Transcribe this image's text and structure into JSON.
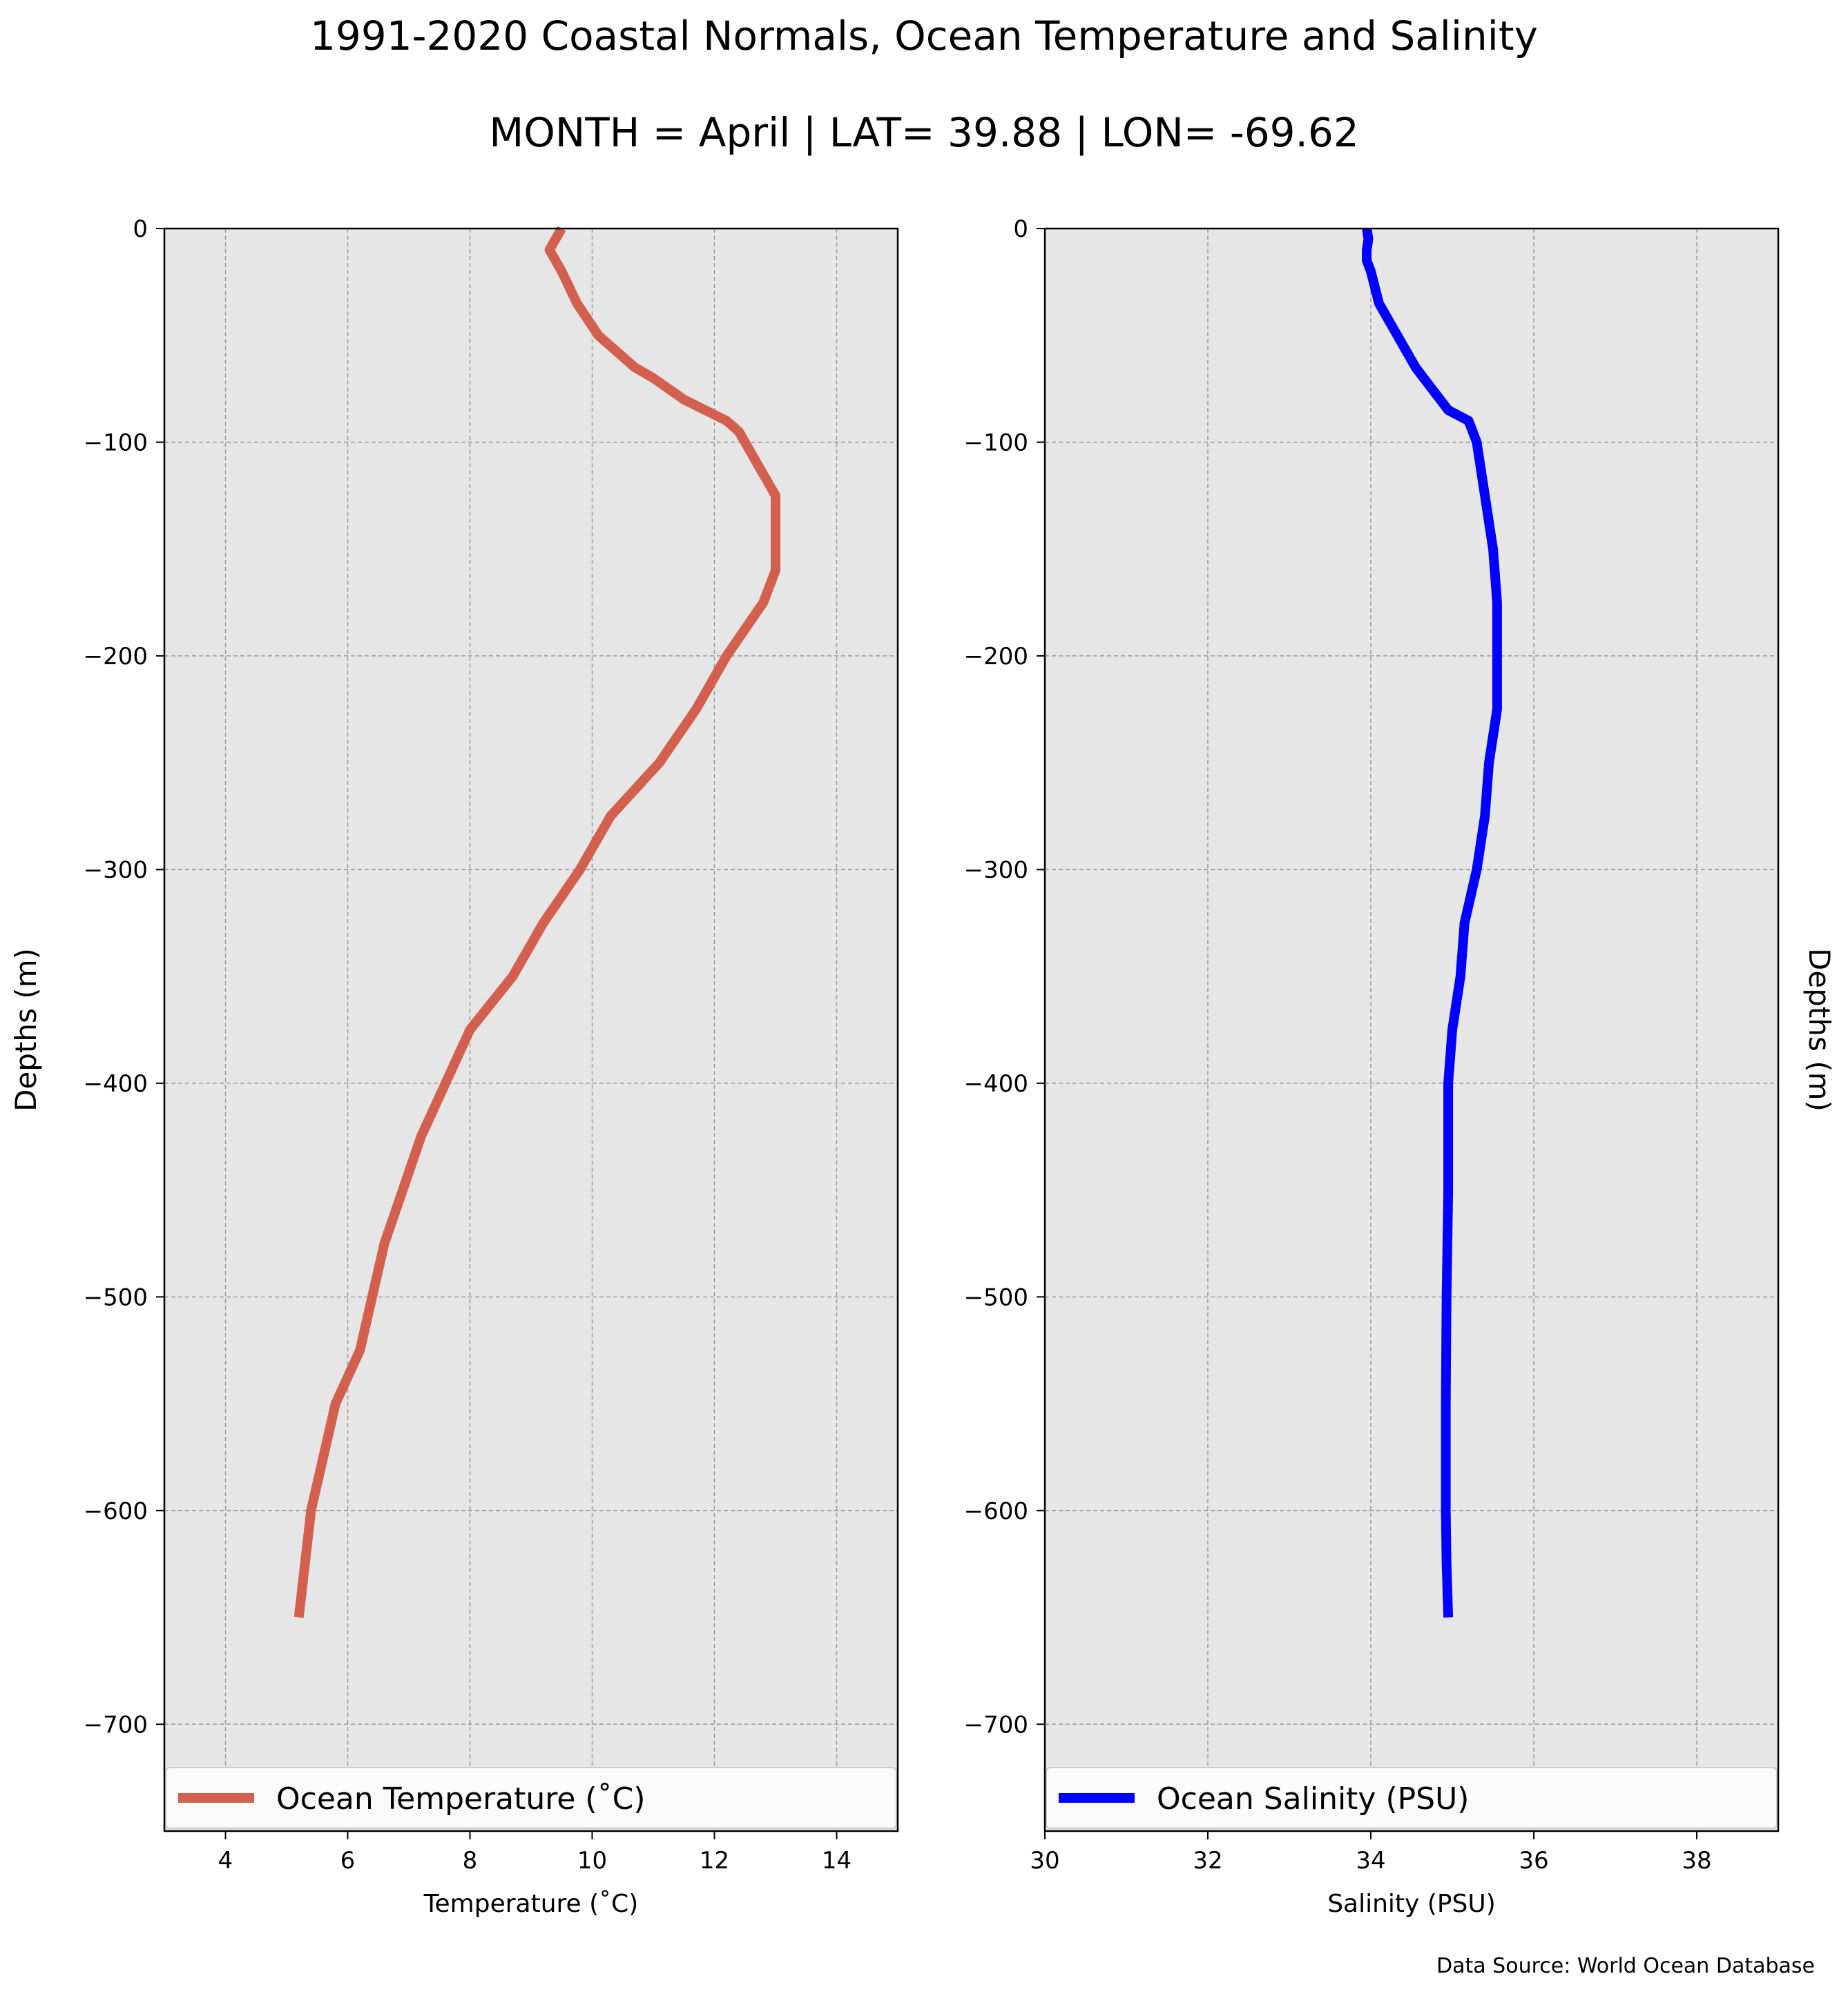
{
  "figure": {
    "title": "1991-2020 Coastal Normals, Ocean Temperature and Salinity",
    "subtitle": "MONTH = April | LAT= 39.88 | LON= -69.62",
    "source": "Data Source: World Ocean Database",
    "background": "#e6e6e6"
  },
  "chart_data": [
    {
      "type": "line",
      "title": "",
      "xlabel": "Temperature (˚C)",
      "ylabel": "Depths (m)",
      "xlim": [
        3,
        15
      ],
      "ylim": [
        -750,
        0
      ],
      "xticks": [
        4,
        6,
        8,
        10,
        12,
        14
      ],
      "xticklabels": [
        "4",
        "6",
        "8",
        "10",
        "12",
        "14"
      ],
      "yticks": [
        0,
        -100,
        -200,
        -300,
        -400,
        -500,
        -600,
        -700
      ],
      "yticklabels": [
        "0",
        "−100",
        "−200",
        "−300",
        "−400",
        "−500",
        "−600",
        "−700"
      ],
      "grid": true,
      "legend": "bottom",
      "series": [
        {
          "name": "Ocean Temperature (˚C)",
          "color": "#d35f4f",
          "x": [
            9.5,
            9.4,
            9.3,
            9.5,
            9.75,
            10.1,
            10.3,
            10.7,
            11.0,
            11.5,
            12.2,
            12.4,
            13.0,
            13.0,
            13.0,
            12.8,
            12.2,
            11.7,
            11.1,
            10.3,
            9.8,
            9.2,
            8.7,
            8.0,
            7.6,
            7.2,
            6.9,
            6.6,
            6.2,
            5.8,
            5.4,
            5.2
          ],
          "y": [
            0,
            -5,
            -10,
            -20,
            -35,
            -50,
            -55,
            -65,
            -70,
            -80,
            -90,
            -95,
            -125,
            -150,
            -160,
            -175,
            -200,
            -225,
            -250,
            -275,
            -300,
            -325,
            -350,
            -375,
            -400,
            -425,
            -450,
            -475,
            -525,
            -550,
            -600,
            -650
          ]
        }
      ]
    },
    {
      "type": "line",
      "title": "",
      "xlabel": "Salinity (PSU)",
      "ylabel": "Depths (m)",
      "xlim": [
        30,
        39
      ],
      "ylim": [
        -750,
        0
      ],
      "xticks": [
        30,
        32,
        34,
        36,
        38
      ],
      "xticklabels": [
        "30",
        "32",
        "34",
        "36",
        "38"
      ],
      "yticks": [
        0,
        -100,
        -200,
        -300,
        -400,
        -500,
        -600,
        -700
      ],
      "yticklabels": [
        "0",
        "−100",
        "−200",
        "−300",
        "−400",
        "−500",
        "−600",
        "−700"
      ],
      "grid": true,
      "legend": "bottom",
      "series": [
        {
          "name": "Ocean Salinity (PSU)",
          "color": "#0000ff",
          "x": [
            33.95,
            33.97,
            33.95,
            33.95,
            34.0,
            34.1,
            34.25,
            34.4,
            34.55,
            34.75,
            34.95,
            35.2,
            35.3,
            35.4,
            35.5,
            35.55,
            35.55,
            35.55,
            35.45,
            35.4,
            35.3,
            35.15,
            35.1,
            35.0,
            34.95,
            34.95,
            34.93,
            34.92,
            34.92,
            34.93,
            34.95
          ],
          "y": [
            0,
            -5,
            -10,
            -15,
            -20,
            -35,
            -45,
            -55,
            -65,
            -75,
            -85,
            -90,
            -100,
            -125,
            -150,
            -175,
            -200,
            -225,
            -250,
            -275,
            -300,
            -325,
            -350,
            -375,
            -400,
            -450,
            -500,
            -550,
            -600,
            -625,
            -650
          ]
        }
      ]
    }
  ]
}
